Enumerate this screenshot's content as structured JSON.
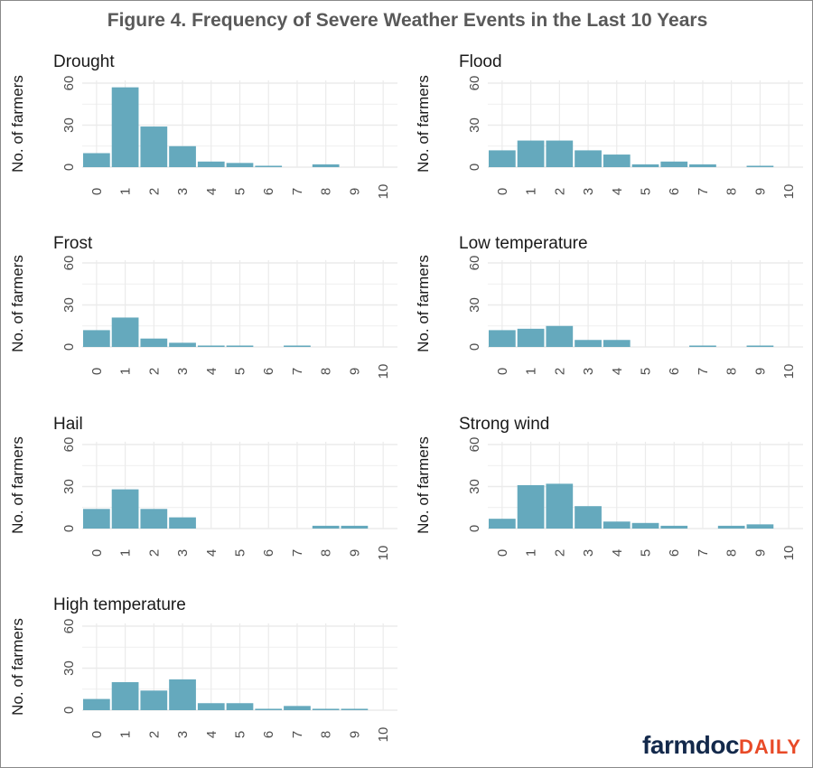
{
  "title": "Figure 4. Frequency of Severe Weather Events in the Last 10 Years",
  "logo": {
    "part1": "farmdoc",
    "part2": "DAILY"
  },
  "colors": {
    "bar": "#65a9bd",
    "grid": "#ebebeb",
    "text": "#1a1a1a",
    "tick": "#4d4d4d",
    "logo_dark": "#13294b",
    "logo_accent": "#e84a27"
  },
  "chart_data": [
    {
      "type": "bar",
      "title": "Drought",
      "ylabel": "No. of farmers",
      "categories": [
        "0",
        "1",
        "2",
        "3",
        "4",
        "5",
        "6",
        "7",
        "8",
        "9",
        "10"
      ],
      "values": [
        10,
        57,
        29,
        15,
        4,
        3,
        1,
        0,
        2,
        0,
        0
      ],
      "yticks": [
        0,
        30,
        60
      ],
      "ylim": [
        0,
        62
      ],
      "grid": true
    },
    {
      "type": "bar",
      "title": "Flood",
      "ylabel": "No. of farmers",
      "categories": [
        "0",
        "1",
        "2",
        "3",
        "4",
        "5",
        "6",
        "7",
        "8",
        "9",
        "10"
      ],
      "values": [
        12,
        19,
        19,
        12,
        9,
        2,
        4,
        2,
        0,
        1,
        0
      ],
      "yticks": [
        0,
        30,
        60
      ],
      "ylim": [
        0,
        62
      ],
      "grid": true
    },
    {
      "type": "bar",
      "title": "Frost",
      "ylabel": "No. of farmers",
      "categories": [
        "0",
        "1",
        "2",
        "3",
        "4",
        "5",
        "6",
        "7",
        "8",
        "9",
        "10"
      ],
      "values": [
        12,
        21,
        6,
        3,
        1,
        1,
        0,
        1,
        0,
        0,
        0
      ],
      "yticks": [
        0,
        30,
        60
      ],
      "ylim": [
        0,
        62
      ],
      "grid": true
    },
    {
      "type": "bar",
      "title": "Low temperature",
      "ylabel": "No. of farmers",
      "categories": [
        "0",
        "1",
        "2",
        "3",
        "4",
        "5",
        "6",
        "7",
        "8",
        "9",
        "10"
      ],
      "values": [
        12,
        13,
        15,
        5,
        5,
        0,
        0,
        1,
        0,
        1,
        0
      ],
      "yticks": [
        0,
        30,
        60
      ],
      "ylim": [
        0,
        62
      ],
      "grid": true
    },
    {
      "type": "bar",
      "title": "Hail",
      "ylabel": "No. of farmers",
      "categories": [
        "0",
        "1",
        "2",
        "3",
        "4",
        "5",
        "6",
        "7",
        "8",
        "9",
        "10"
      ],
      "values": [
        14,
        28,
        14,
        8,
        0,
        0,
        0,
        0,
        2,
        2,
        0
      ],
      "yticks": [
        0,
        30,
        60
      ],
      "ylim": [
        0,
        62
      ],
      "grid": true
    },
    {
      "type": "bar",
      "title": "Strong wind",
      "ylabel": "No. of farmers",
      "categories": [
        "0",
        "1",
        "2",
        "3",
        "4",
        "5",
        "6",
        "7",
        "8",
        "9",
        "10"
      ],
      "values": [
        7,
        31,
        32,
        16,
        5,
        4,
        2,
        0,
        2,
        3,
        0
      ],
      "yticks": [
        0,
        30,
        60
      ],
      "ylim": [
        0,
        62
      ],
      "grid": true
    },
    {
      "type": "bar",
      "title": "High temperature",
      "ylabel": "No. of farmers",
      "categories": [
        "0",
        "1",
        "2",
        "3",
        "4",
        "5",
        "6",
        "7",
        "8",
        "9",
        "10"
      ],
      "values": [
        8,
        20,
        14,
        22,
        5,
        5,
        1,
        3,
        1,
        1,
        0
      ],
      "yticks": [
        0,
        30,
        60
      ],
      "ylim": [
        0,
        62
      ],
      "grid": true
    }
  ]
}
